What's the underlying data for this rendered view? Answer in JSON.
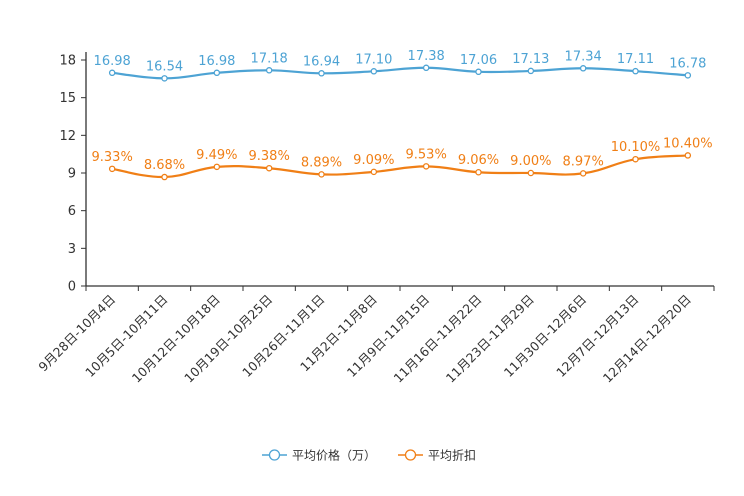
{
  "chart_data": {
    "type": "line",
    "categories": [
      "9月28日-10月4日",
      "10月5日-10月11日",
      "10月12日-10月18日",
      "10月19日-10月25日",
      "10月26日-11月1日",
      "11月2日-11月8日",
      "11月9日-11月15日",
      "11月16日-11月22日",
      "11月23日-11月29日",
      "11月30日-12月6日",
      "12月7日-12月13日",
      "12月14日-12月20日"
    ],
    "ylim": [
      0,
      18
    ],
    "yticks": [
      0,
      3,
      6,
      9,
      12,
      15,
      18
    ],
    "series": [
      {
        "name": "平均价格（万）",
        "color": "#4da3d4",
        "values": [
          16.98,
          16.54,
          16.98,
          17.18,
          16.94,
          17.1,
          17.38,
          17.06,
          17.13,
          17.34,
          17.11,
          16.78
        ],
        "labels": [
          "16.98",
          "16.54",
          "16.98",
          "17.18",
          "16.94",
          "17.10",
          "17.38",
          "17.06",
          "17.13",
          "17.34",
          "17.11",
          "16.78"
        ]
      },
      {
        "name": "平均折扣",
        "color": "#f07f16",
        "values": [
          9.33,
          8.68,
          9.49,
          9.38,
          8.89,
          9.09,
          9.53,
          9.06,
          9.0,
          8.97,
          10.1,
          10.4
        ],
        "labels": [
          "9.33%",
          "8.68%",
          "9.49%",
          "9.38%",
          "8.89%",
          "9.09%",
          "9.53%",
          "9.06%",
          "9.00%",
          "8.97%",
          "10.10%",
          "10.40%"
        ]
      }
    ],
    "legend": "bottom-center"
  }
}
